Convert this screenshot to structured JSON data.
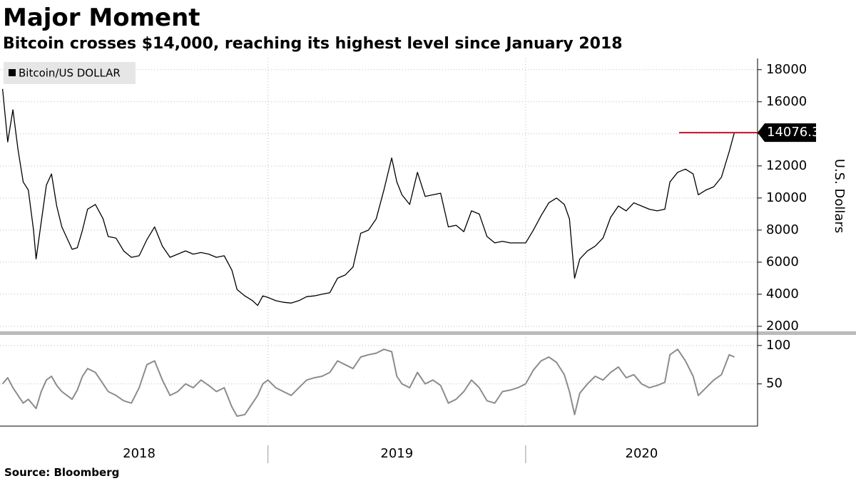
{
  "chart_data": {
    "type": "line",
    "title": "Major Moment",
    "subtitle": "Bitcoin crosses $14,000, reaching its highest level since January 2018",
    "ylabel": "U.S. Dollars",
    "source": "Source: Bloomberg",
    "grid": true,
    "legend": "upper left",
    "x": [
      2017.97,
      2017.99,
      2018.01,
      2018.03,
      2018.05,
      2018.07,
      2018.09,
      2018.1,
      2018.12,
      2018.14,
      2018.16,
      2018.18,
      2018.2,
      2018.22,
      2018.24,
      2018.26,
      2018.28,
      2018.3,
      2018.33,
      2018.36,
      2018.38,
      2018.41,
      2018.44,
      2018.47,
      2018.5,
      2018.53,
      2018.56,
      2018.59,
      2018.62,
      2018.65,
      2018.68,
      2018.71,
      2018.74,
      2018.77,
      2018.8,
      2018.83,
      2018.86,
      2018.88,
      2018.91,
      2018.94,
      2018.96,
      2018.98,
      2019.0,
      2019.03,
      2019.06,
      2019.09,
      2019.12,
      2019.15,
      2019.18,
      2019.21,
      2019.24,
      2019.27,
      2019.3,
      2019.33,
      2019.36,
      2019.39,
      2019.42,
      2019.45,
      2019.48,
      2019.5,
      2019.52,
      2019.55,
      2019.58,
      2019.61,
      2019.64,
      2019.67,
      2019.7,
      2019.73,
      2019.76,
      2019.79,
      2019.82,
      2019.85,
      2019.88,
      2019.91,
      2019.94,
      2019.97,
      2020.0,
      2020.03,
      2020.06,
      2020.09,
      2020.12,
      2020.15,
      2020.17,
      2020.19,
      2020.21,
      2020.24,
      2020.27,
      2020.3,
      2020.33,
      2020.36,
      2020.39,
      2020.42,
      2020.45,
      2020.48,
      2020.51,
      2020.54,
      2020.56,
      2020.59,
      2020.62,
      2020.65,
      2020.67,
      2020.7,
      2020.73,
      2020.76,
      2020.79,
      2020.81
    ],
    "xlim": [
      2017.96,
      2020.9
    ],
    "xticks": [
      {
        "value": 2018.5,
        "label": "2018"
      },
      {
        "value": 2019.5,
        "label": "2019"
      },
      {
        "value": 2020.45,
        "label": "2020"
      }
    ],
    "ylim": [
      1820,
      18700
    ],
    "yticks": [
      2000,
      4000,
      6000,
      8000,
      10000,
      12000,
      14000,
      16000,
      18000
    ],
    "y2lim": [
      -5,
      111
    ],
    "y2ticks": [
      50,
      100
    ],
    "series": [
      {
        "name": "Bitcoin/US DOLLAR",
        "color": "#000000",
        "values": [
          16800,
          13500,
          15500,
          13000,
          11000,
          10500,
          8000,
          6200,
          8500,
          10800,
          11500,
          9500,
          8200,
          7500,
          6800,
          6900,
          8000,
          9300,
          9600,
          8700,
          7600,
          7500,
          6700,
          6300,
          6400,
          7400,
          8200,
          7000,
          6300,
          6500,
          6700,
          6500,
          6600,
          6500,
          6300,
          6400,
          5500,
          4300,
          3900,
          3600,
          3300,
          3900,
          3800,
          3600,
          3500,
          3450,
          3600,
          3850,
          3900,
          4000,
          4100,
          5000,
          5200,
          5700,
          7800,
          8000,
          8700,
          10500,
          12500,
          11000,
          10200,
          9600,
          11600,
          10100,
          10200,
          10300,
          8200,
          8300,
          7900,
          9200,
          9000,
          7600,
          7200,
          7300,
          7200,
          7200,
          7200,
          8000,
          8900,
          9700,
          10000,
          9600,
          8700,
          5000,
          6200,
          6700,
          7000,
          7500,
          8800,
          9500,
          9200,
          9700,
          9500,
          9300,
          9200,
          9300,
          11000,
          11600,
          11800,
          11500,
          10200,
          10500,
          10700,
          11300,
          12900,
          14076.34
        ]
      },
      {
        "axis": "y2",
        "color": "#8c8c8c",
        "values": [
          50,
          58,
          45,
          35,
          25,
          30,
          22,
          18,
          40,
          55,
          60,
          48,
          40,
          35,
          30,
          42,
          60,
          70,
          65,
          50,
          40,
          35,
          28,
          25,
          45,
          75,
          80,
          55,
          35,
          40,
          50,
          45,
          55,
          48,
          40,
          45,
          20,
          8,
          10,
          25,
          35,
          50,
          55,
          45,
          40,
          35,
          45,
          55,
          58,
          60,
          65,
          80,
          75,
          70,
          85,
          88,
          90,
          95,
          92,
          60,
          50,
          45,
          65,
          50,
          55,
          48,
          25,
          30,
          40,
          55,
          45,
          28,
          25,
          40,
          42,
          45,
          50,
          68,
          80,
          85,
          78,
          62,
          40,
          10,
          38,
          50,
          60,
          55,
          65,
          72,
          58,
          62,
          50,
          45,
          48,
          52,
          88,
          95,
          80,
          60,
          35,
          45,
          55,
          62,
          88,
          85
        ]
      }
    ]
  }
}
